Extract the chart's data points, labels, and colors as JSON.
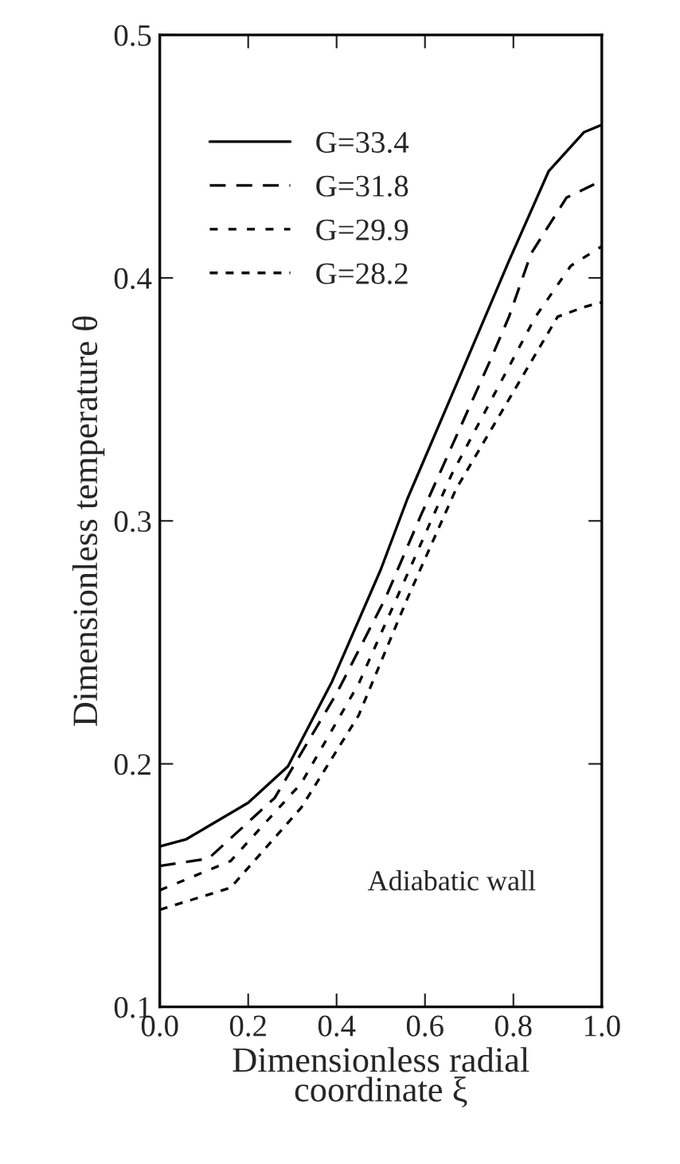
{
  "chart_data": {
    "type": "line",
    "xlabel": "Dimensionless radial\ncoordinate ξ",
    "ylabel": "Dimensionless temperature θ",
    "xlim": [
      0,
      1
    ],
    "ylim": [
      0.1,
      0.5
    ],
    "xticks": [
      {
        "value": 0,
        "label": "0.0"
      },
      {
        "value": 0.2,
        "label": "0.2"
      },
      {
        "value": 0.4,
        "label": "0.4"
      },
      {
        "value": 0.6,
        "label": "0.6"
      },
      {
        "value": 0.8,
        "label": "0.8"
      },
      {
        "value": 1,
        "label": "1.0"
      }
    ],
    "yticks": [
      0.1,
      0.2,
      0.3,
      0.4,
      0.5
    ],
    "grid": false,
    "legend": "top left",
    "annotations": [
      "Adiabatic wall"
    ],
    "series": [
      {
        "name": "G=33.4",
        "color": "#000000",
        "line_style": "solid",
        "x": [
          0,
          0.06,
          0.2,
          0.29,
          0.39,
          0.5,
          0.56,
          0.68,
          0.79,
          0.88,
          0.96,
          1
        ],
        "values": [
          0.166,
          0.169,
          0.184,
          0.199,
          0.234,
          0.28,
          0.309,
          0.36,
          0.407,
          0.444,
          0.46,
          0.463
        ]
      },
      {
        "name": "G=31.8",
        "color": "#000000",
        "line_style": "dashed",
        "x": [
          0,
          0.11,
          0.26,
          0.4,
          0.51,
          0.59,
          0.75,
          0.79,
          0.84,
          0.92,
          1
        ],
        "values": [
          0.158,
          0.161,
          0.186,
          0.229,
          0.268,
          0.302,
          0.367,
          0.384,
          0.41,
          0.433,
          0.44
        ]
      },
      {
        "name": "G=29.9",
        "color": "#000000",
        "line_style": "dashed",
        "x": [
          0,
          0.16,
          0.32,
          0.45,
          0.56,
          0.66,
          0.85,
          0.93,
          1
        ],
        "values": [
          0.148,
          0.16,
          0.192,
          0.233,
          0.278,
          0.319,
          0.384,
          0.405,
          0.413
        ]
      },
      {
        "name": "G=28.2",
        "color": "#000000",
        "line_style": "dotted",
        "x": [
          0,
          0.16,
          0.32,
          0.45,
          0.56,
          0.67,
          0.9,
          0.96,
          1
        ],
        "values": [
          0.14,
          0.149,
          0.182,
          0.22,
          0.268,
          0.313,
          0.384,
          0.388,
          0.39
        ]
      }
    ]
  }
}
